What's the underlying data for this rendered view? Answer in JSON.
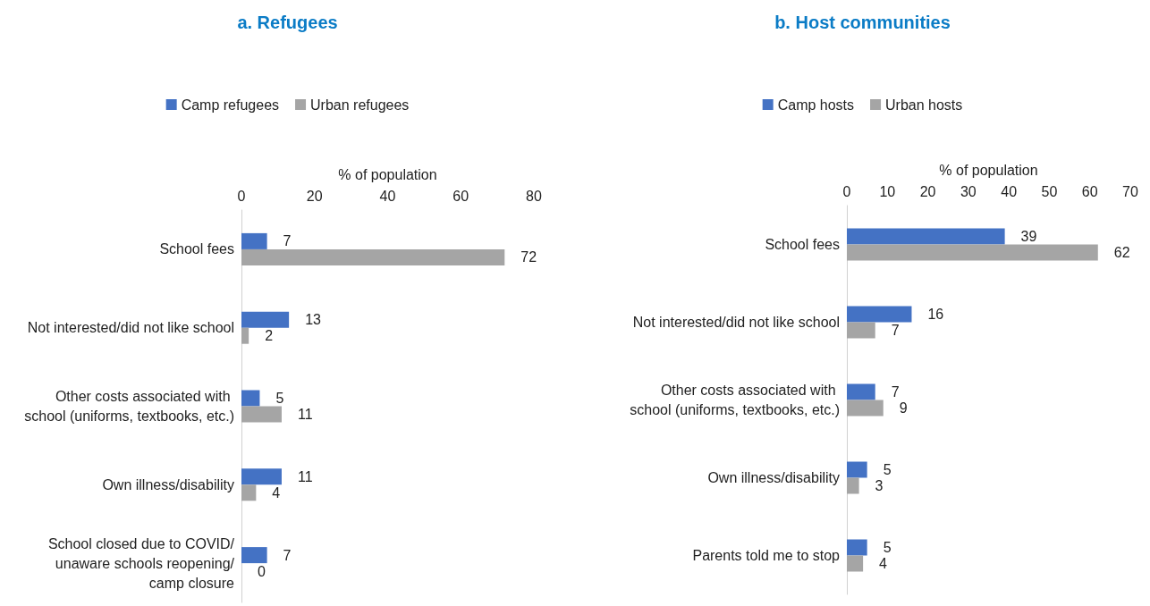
{
  "chart_data": [
    {
      "type": "bar",
      "orientation": "horizontal",
      "title": "a. Refugees",
      "xlabel": "% of population",
      "categories": [
        "School fees",
        "Not interested/did not like school",
        "Other costs associated with school (uniforms, textbooks, etc.)",
        "Own illness/disability",
        "School closed due to COVID/unaware schools reopening/camp closure"
      ],
      "series": [
        {
          "name": "Camp refugees",
          "color": "#4472c4",
          "values": [
            7,
            13,
            5,
            11,
            7
          ]
        },
        {
          "name": "Urban refugees",
          "color": "#a5a5a5",
          "values": [
            72,
            2,
            11,
            4,
            0
          ]
        }
      ],
      "xlim": [
        0,
        80
      ],
      "xticks": [
        0,
        20,
        40,
        60,
        80
      ],
      "grid": false,
      "legend": "top",
      "data_labels": true
    },
    {
      "type": "bar",
      "orientation": "horizontal",
      "title": "b. Host communities",
      "xlabel": "% of population",
      "categories": [
        "School fees",
        "Not interested/did not like school",
        "Other costs associated with school (uniforms, textbooks, etc.)",
        "Own illness/disability",
        "Parents told me to stop"
      ],
      "series": [
        {
          "name": "Camp hosts",
          "color": "#4472c4",
          "values": [
            39,
            16,
            7,
            5,
            5
          ]
        },
        {
          "name": "Urban hosts",
          "color": "#a5a5a5",
          "values": [
            62,
            7,
            9,
            3,
            4
          ]
        }
      ],
      "xlim": [
        0,
        70
      ],
      "xticks": [
        0,
        10,
        20,
        30,
        40,
        50,
        60,
        70
      ],
      "grid": false,
      "legend": "top",
      "data_labels": true
    }
  ]
}
